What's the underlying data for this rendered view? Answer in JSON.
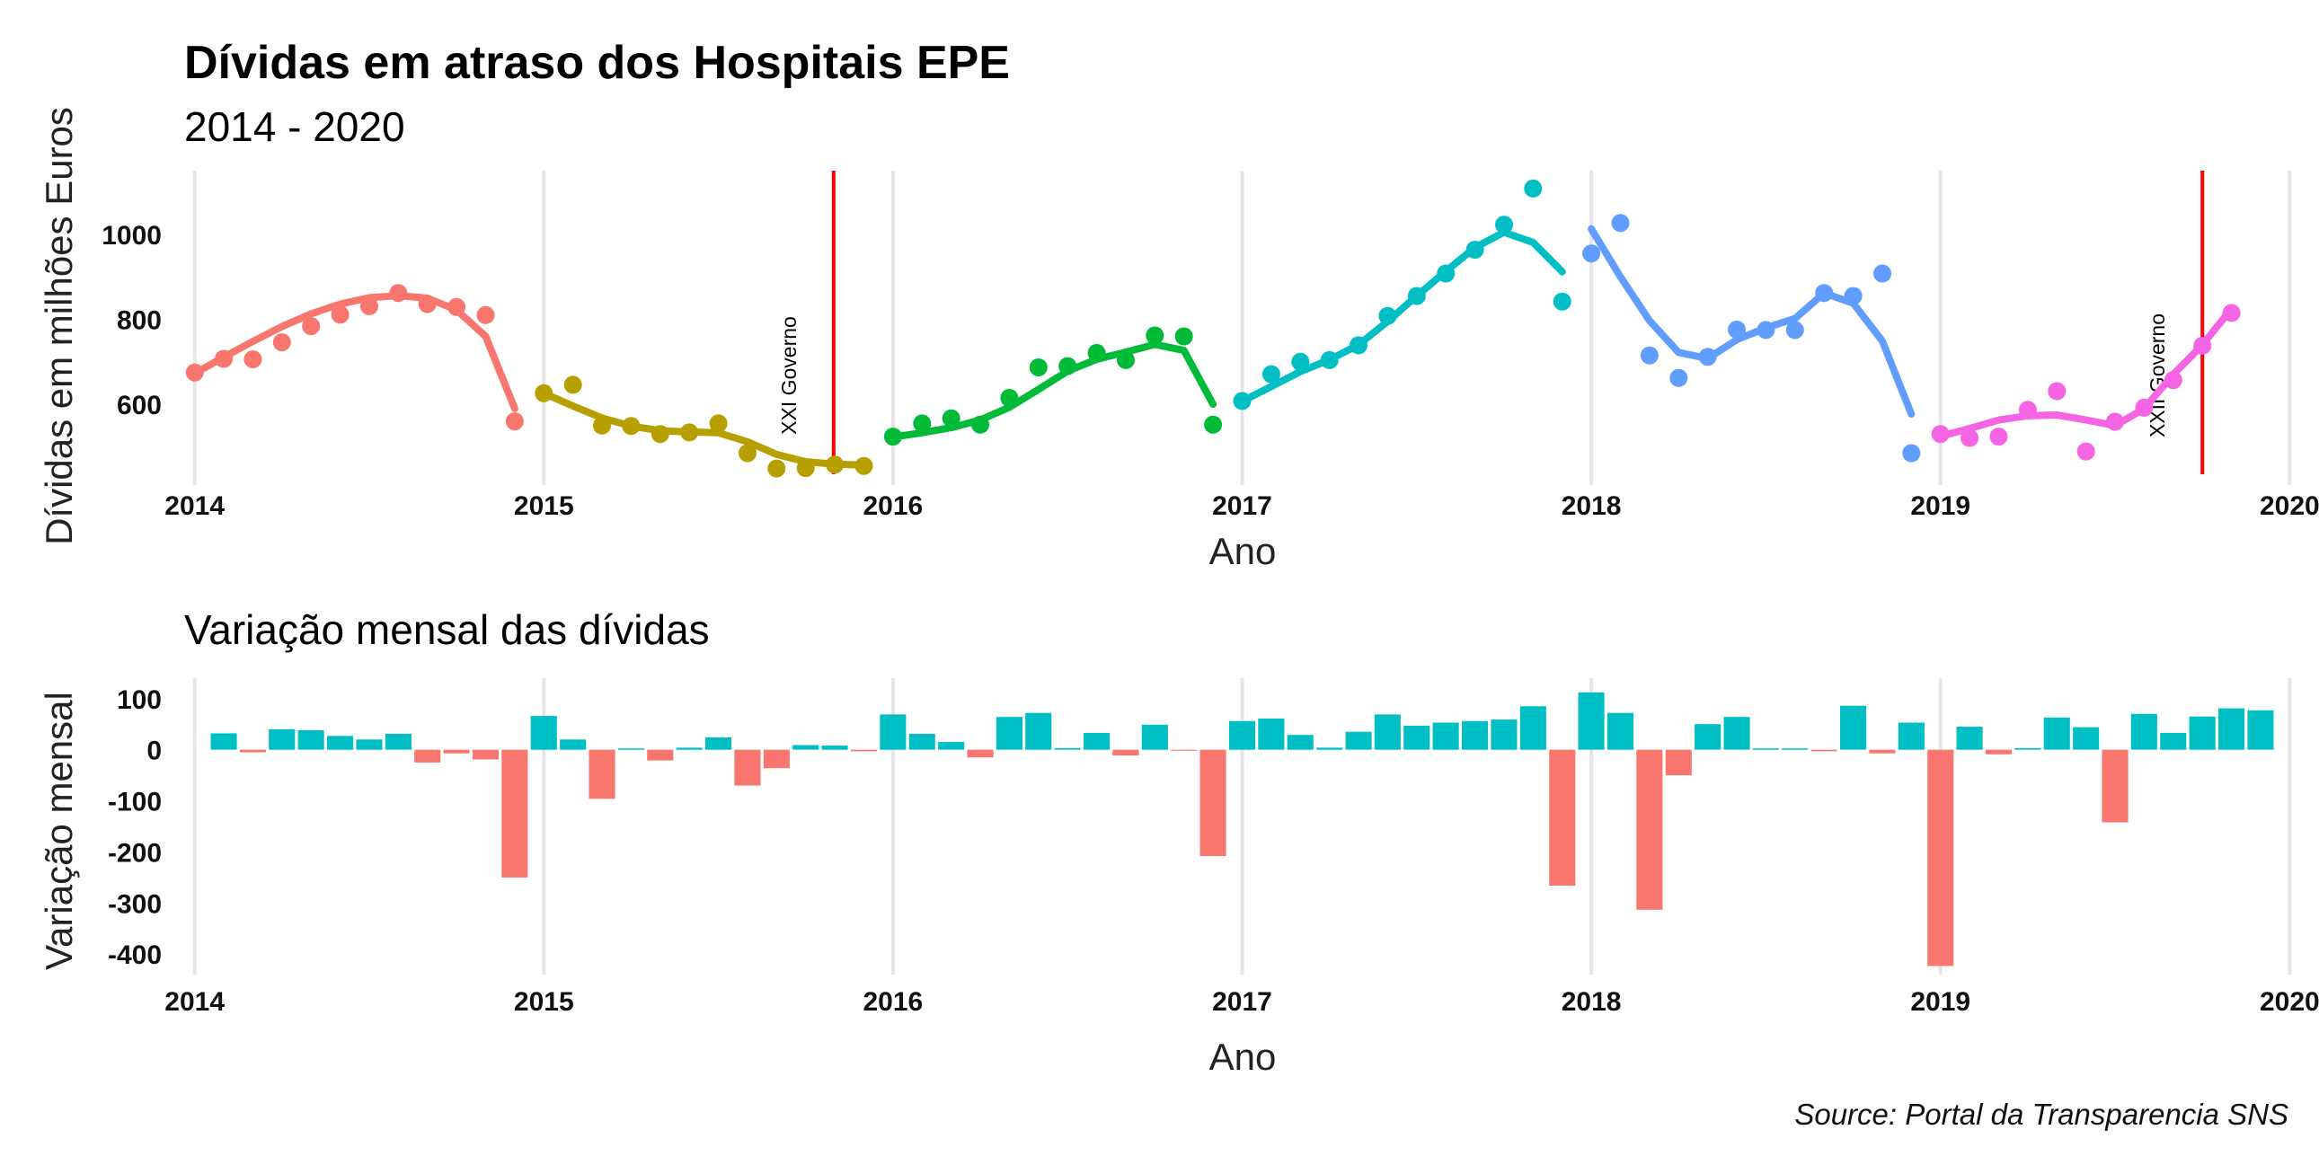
{
  "chart_data": [
    {
      "type": "scatter",
      "title": "Dívidas em atraso  dos Hospitais EPE",
      "subtitle": "2014 - 2020",
      "xlabel": "Ano",
      "ylabel": "Dívidas em milhões Euros",
      "xlim": [
        2013.97,
        2020.03
      ],
      "ylim": [
        410,
        1150
      ],
      "x_ticks": [
        "2014",
        "2015",
        "2016",
        "2017",
        "2018",
        "2019",
        "2020"
      ],
      "y_ticks": [
        "600",
        "800",
        "1000"
      ],
      "grid": "vertical major only",
      "legend": "none",
      "smoothing": "loess curve per year",
      "series": [
        {
          "year": "2014",
          "color": "#F8766D",
          "values": [
            675,
            707,
            706,
            746,
            784,
            811,
            831,
            862,
            836,
            829,
            810,
            560
          ],
          "smooth": [
            673,
            711,
            748,
            783,
            813,
            836,
            851,
            856,
            850,
            822,
            760,
            590
          ]
        },
        {
          "year": "2015",
          "color": "#B79F00",
          "values": [
            626,
            646,
            550,
            549,
            530,
            534,
            555,
            485,
            449,
            450,
            458,
            455
          ],
          "smooth": [
            626,
            596,
            568,
            549,
            538,
            535,
            533,
            512,
            482,
            465,
            459,
            457
          ]
        },
        {
          "year": "2016",
          "color": "#00BA38",
          "values": [
            524,
            555,
            567,
            552,
            615,
            687,
            690,
            721,
            704,
            762,
            760,
            552
          ],
          "smooth": [
            523,
            533,
            545,
            563,
            593,
            635,
            678,
            706,
            723,
            741,
            727,
            600
          ]
        },
        {
          "year": "2017",
          "color": "#00BFC4",
          "values": [
            608,
            671,
            700,
            704,
            739,
            808,
            855,
            908,
            964,
            1023,
            1108,
            842
          ],
          "smooth": [
            607,
            642,
            677,
            705,
            740,
            795,
            855,
            913,
            969,
            1005,
            981,
            912
          ]
        },
        {
          "year": "2018",
          "color": "#619CFF",
          "values": [
            955,
            1027,
            715,
            662,
            712,
            776,
            775,
            775,
            862,
            855,
            908,
            485
          ],
          "smooth": [
            1013,
            900,
            797,
            722,
            708,
            752,
            780,
            802,
            862,
            838,
            749,
            577
          ]
        },
        {
          "year": "2019",
          "color": "#F564E3",
          "values": [
            530,
            521,
            524,
            587,
            631,
            489,
            559,
            592,
            657,
            738,
            815
          ],
          "smooth": [
            525,
            543,
            563,
            573,
            575,
            563,
            550,
            590,
            670,
            740,
            825
          ]
        }
      ],
      "vlines": [
        {
          "x": 2015.83,
          "label": "XXI Governo",
          "color": "#FF0000"
        },
        {
          "x": 2019.75,
          "label": "XXII Governo",
          "color": "#FF0000"
        }
      ]
    },
    {
      "type": "bar",
      "title": "Variação mensal das dívidas",
      "xlabel": "Ano",
      "ylabel": "Variação mensal",
      "xlim": [
        2013.97,
        2020.03
      ],
      "ylim": [
        -440,
        140
      ],
      "x_ticks": [
        "2014",
        "2015",
        "2016",
        "2017",
        "2018",
        "2019",
        "2020"
      ],
      "y_ticks": [
        "100",
        "0",
        "-100",
        "-200",
        "-300",
        "-400"
      ],
      "grid": "vertical major only",
      "legend": "none",
      "positive_color": "#00BFC4",
      "negative_color": "#F8766D",
      "values": [
        32,
        -5,
        40,
        38,
        27,
        20,
        31,
        -25,
        -7,
        -19,
        -250,
        66,
        20,
        -96,
        0,
        -21,
        4,
        24,
        -70,
        -36,
        9,
        8,
        -3,
        69,
        31,
        15,
        -15,
        64,
        72,
        3,
        33,
        -11,
        49,
        -2,
        -208,
        56,
        61,
        29,
        4,
        35,
        69,
        47,
        53,
        56,
        59,
        85,
        -266,
        112,
        72,
        -313,
        -50,
        50,
        64,
        0,
        0,
        -3,
        86,
        -7,
        53,
        -423,
        45,
        -9,
        3,
        63,
        44,
        -142,
        70,
        33,
        65,
        81,
        77
      ]
    }
  ],
  "caption": "Source: Portal da Transparencia SNS"
}
